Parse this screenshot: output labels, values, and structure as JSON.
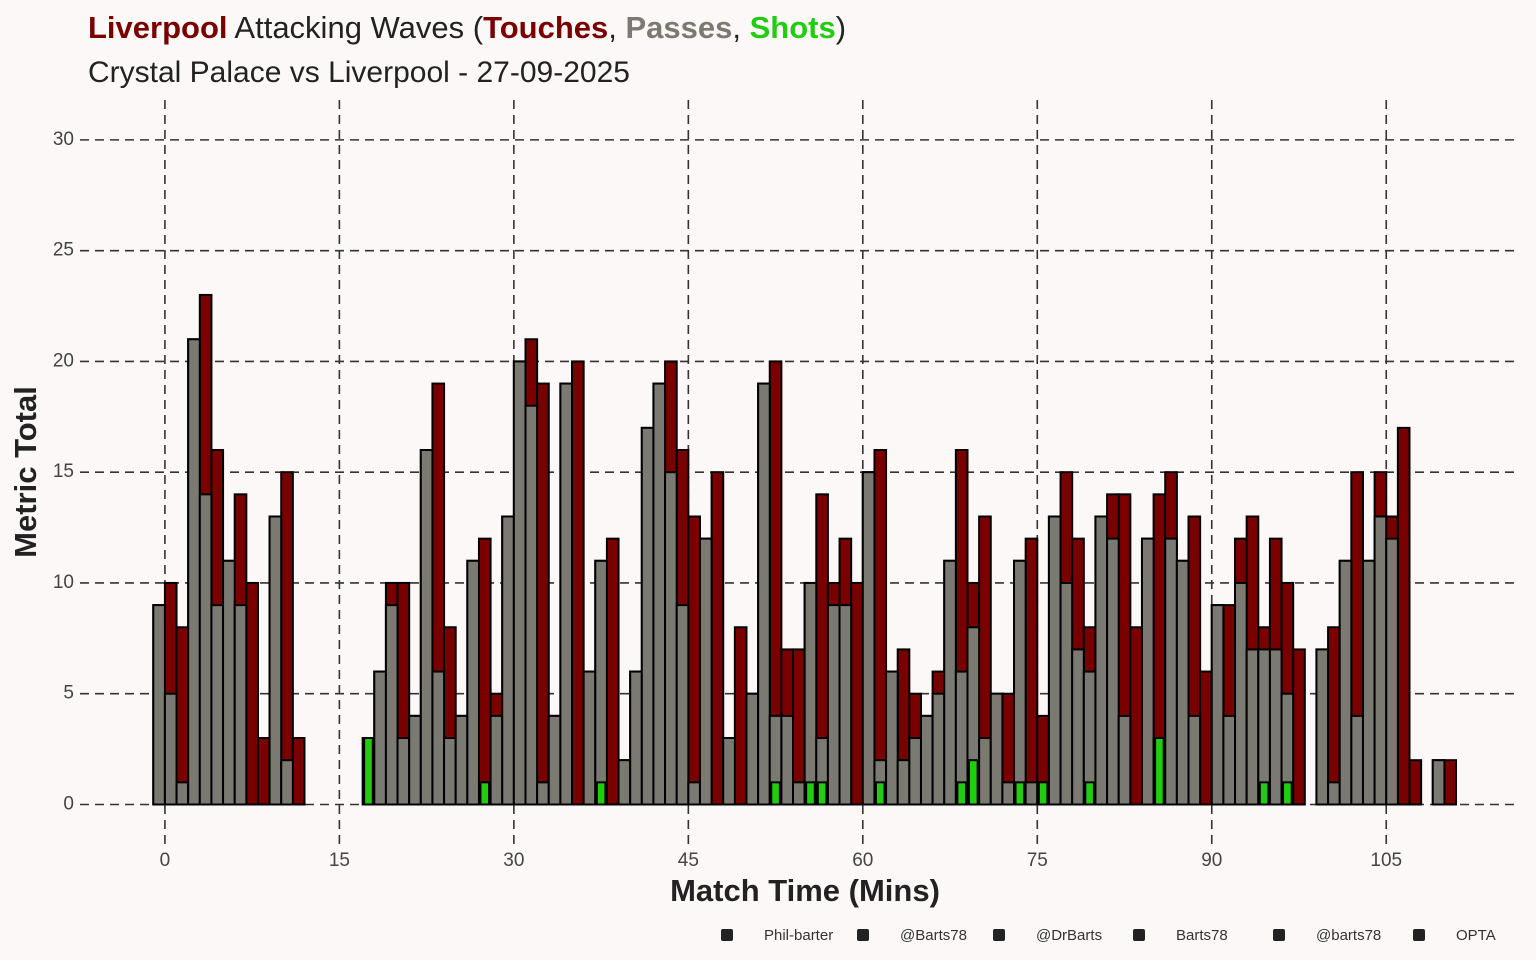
{
  "chart_data": {
    "type": "bar",
    "title_parts": [
      {
        "text": "Liverpool",
        "color": "#7a0000",
        "bold": true
      },
      {
        "text": " Attacking Waves (",
        "color": "#222222",
        "bold": false
      },
      {
        "text": "Touches",
        "color": "#7a0000",
        "bold": true
      },
      {
        "text": ", ",
        "color": "#222222",
        "bold": false
      },
      {
        "text": "Passes",
        "color": "#7a7a72",
        "bold": true
      },
      {
        "text": ", ",
        "color": "#222222",
        "bold": false
      },
      {
        "text": "Shots",
        "color": "#22cc11",
        "bold": true
      },
      {
        "text": ")",
        "color": "#222222",
        "bold": false
      }
    ],
    "subtitle": "Crystal Palace vs Liverpool - 27-09-2025",
    "x_label": "Match Time (Mins)",
    "y_label": "Metric Total",
    "x": [
      0,
      1,
      2,
      3,
      4,
      5,
      6,
      7,
      8,
      9,
      10,
      11,
      12,
      18,
      19,
      20,
      21,
      22,
      23,
      24,
      25,
      26,
      27,
      28,
      29,
      30,
      31,
      32,
      33,
      34,
      35,
      36,
      37,
      38,
      39,
      40,
      41,
      42,
      43,
      44,
      45,
      46,
      47,
      48,
      49,
      50,
      51,
      52,
      53,
      54,
      55,
      56,
      57,
      58,
      59,
      60,
      61,
      62,
      63,
      64,
      65,
      66,
      67,
      68,
      69,
      70,
      71,
      72,
      73,
      74,
      75,
      76,
      77,
      78,
      79,
      80,
      81,
      82,
      83,
      84,
      85,
      86,
      87,
      88,
      89,
      90,
      91,
      92,
      93,
      94,
      95,
      96,
      97,
      98,
      100,
      101,
      102,
      103,
      104,
      105,
      106,
      107,
      108,
      110,
      111
    ],
    "series": [
      {
        "name": "Touches",
        "color": "#7a0000",
        "values": [
          9,
          10,
          8,
          21,
          23,
          16,
          11,
          14,
          10,
          3,
          13,
          15,
          3,
          3,
          6,
          10,
          10,
          4,
          16,
          19,
          8,
          4,
          11,
          12,
          5,
          13,
          20,
          21,
          19,
          4,
          19,
          20,
          6,
          11,
          12,
          2,
          6,
          17,
          19,
          20,
          16,
          13,
          12,
          15,
          3,
          8,
          5,
          19,
          20,
          7,
          7,
          10,
          14,
          10,
          12,
          10,
          15,
          16,
          6,
          7,
          5,
          4,
          6,
          11,
          16,
          10,
          13,
          5,
          5,
          11,
          12,
          4,
          13,
          15,
          12,
          8,
          13,
          14,
          14,
          8,
          12,
          14,
          15,
          11,
          13,
          6,
          9,
          9,
          12,
          13,
          8,
          12,
          10,
          7,
          7,
          8,
          11,
          15,
          11,
          15,
          13,
          17,
          2,
          2,
          2
        ]
      },
      {
        "name": "Passes",
        "color": "#7a7a72",
        "values": [
          9,
          5,
          1,
          21,
          14,
          9,
          11,
          9,
          0,
          0,
          13,
          2,
          0,
          0,
          6,
          9,
          3,
          4,
          16,
          6,
          3,
          4,
          11,
          1,
          4,
          13,
          20,
          18,
          1,
          4,
          19,
          0,
          6,
          11,
          0,
          2,
          6,
          17,
          19,
          15,
          9,
          1,
          12,
          0,
          3,
          0,
          5,
          19,
          4,
          4,
          1,
          10,
          3,
          9,
          9,
          0,
          15,
          2,
          6,
          2,
          3,
          4,
          5,
          11,
          6,
          8,
          3,
          5,
          1,
          11,
          1,
          1,
          13,
          10,
          7,
          6,
          13,
          12,
          4,
          0,
          12,
          3,
          12,
          11,
          4,
          0,
          9,
          4,
          10,
          7,
          7,
          7,
          5,
          0,
          7,
          1,
          11,
          4,
          11,
          13,
          12,
          0,
          0,
          2,
          0
        ]
      },
      {
        "name": "Shots",
        "color": "#22cc11",
        "values": [
          0,
          0,
          0,
          0,
          0,
          0,
          0,
          0,
          0,
          0,
          0,
          0,
          0,
          3,
          0,
          0,
          0,
          0,
          0,
          0,
          0,
          0,
          0,
          1,
          0,
          0,
          0,
          0,
          0,
          0,
          0,
          0,
          0,
          1,
          0,
          0,
          0,
          0,
          0,
          0,
          0,
          0,
          0,
          0,
          0,
          0,
          0,
          0,
          1,
          0,
          0,
          1,
          1,
          0,
          0,
          0,
          0,
          1,
          0,
          0,
          0,
          0,
          0,
          0,
          1,
          2,
          0,
          0,
          0,
          1,
          0,
          1,
          0,
          0,
          0,
          1,
          0,
          0,
          0,
          0,
          0,
          3,
          0,
          0,
          0,
          0,
          0,
          0,
          0,
          0,
          1,
          0,
          1,
          0,
          0,
          0,
          0,
          0,
          0,
          0,
          0,
          0,
          0,
          0,
          0
        ]
      }
    ],
    "xlim": [
      -7.3,
      116.5
    ],
    "ylim": [
      -0.7,
      31.8
    ],
    "xticks": [
      0,
      15,
      30,
      45,
      60,
      75,
      90,
      105
    ],
    "yticks": [
      0,
      5,
      10,
      15,
      20,
      25,
      30
    ],
    "grid": true,
    "credits": [
      "Phil-barter",
      "@Barts78",
      "@DrBarts",
      "Barts78",
      "@barts78",
      "OPTA"
    ]
  }
}
